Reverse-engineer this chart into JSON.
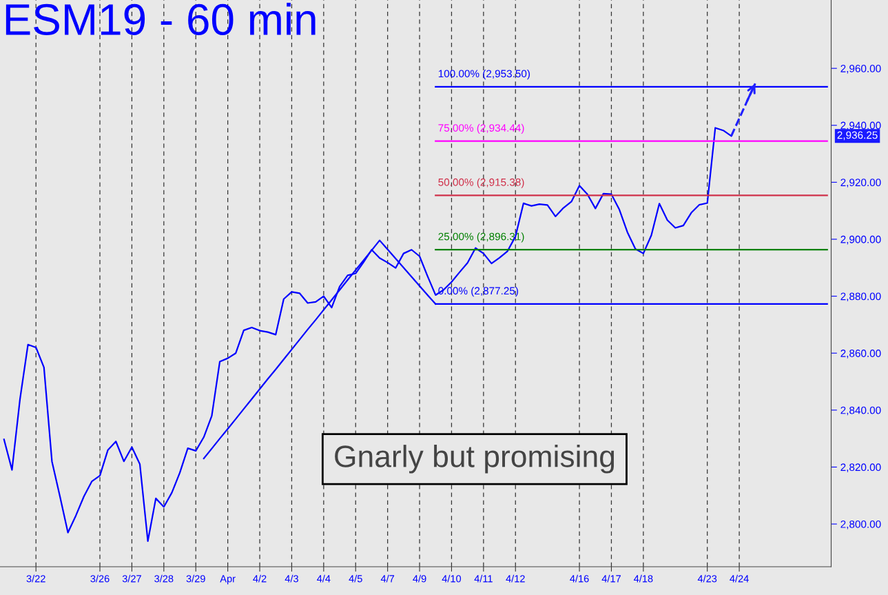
{
  "chart_data": {
    "type": "line",
    "title": "ESM19 - 60 min",
    "annotations": [
      "Gnarly but promising",
      "2,936.25"
    ],
    "categories": [
      null,
      null,
      null,
      null,
      "3/22",
      null,
      null,
      null,
      null,
      null,
      null,
      null,
      "3/26",
      null,
      null,
      null,
      "3/27",
      null,
      null,
      null,
      "3/28",
      null,
      null,
      null,
      "3/29",
      null,
      null,
      null,
      "Apr",
      null,
      null,
      null,
      "4/2",
      null,
      null,
      null,
      "4/3",
      null,
      null,
      null,
      "4/4",
      null,
      null,
      null,
      "4/5",
      null,
      null,
      null,
      "4/7",
      null,
      null,
      null,
      "4/9",
      null,
      null,
      null,
      "4/10",
      null,
      null,
      null,
      "4/11",
      null,
      null,
      null,
      "4/12",
      null,
      null,
      null,
      null,
      null,
      null,
      null,
      "4/16",
      null,
      null,
      null,
      "4/17",
      null,
      null,
      null,
      "4/18",
      null,
      null,
      null,
      null,
      null,
      null,
      null,
      "4/23",
      null,
      null,
      null,
      "4/24",
      null,
      null,
      null,
      null,
      null,
      null,
      null,
      null,
      null,
      null,
      null
    ],
    "series": [
      {
        "color": "#0000ff",
        "values": [
          2829.7,
          2819,
          2843.8,
          2863,
          2862,
          2855,
          2822,
          2809.7,
          2797,
          2803,
          2809.7,
          2815,
          2817,
          2826,
          2829,
          2822,
          2827,
          2821,
          2794,
          2809,
          2806,
          2811,
          2818,
          2826.6,
          2825.7,
          2830.5,
          2838,
          2857,
          2858.2,
          2860,
          2868,
          2869,
          2867.9,
          2867.4,
          2866.5,
          2879,
          2881.5,
          2881,
          2877.6,
          2878,
          2880,
          2876,
          2883.4,
          2887.3,
          2888,
          2892,
          2896.3,
          2893.4,
          2891.8,
          2889.9,
          2895,
          2896.3,
          2894,
          2887,
          2880.4,
          2882.2,
          2885,
          2888.4,
          2891.7,
          2896.9,
          2895,
          2891.5,
          2893.5,
          2895.8,
          2901,
          2912.6,
          2911.7,
          2912.3,
          2912,
          2908,
          2911,
          2913.2,
          2918.8,
          2915.8,
          2910.8,
          2916,
          2915.8,
          2910.4,
          2902.5,
          2896.6,
          2895,
          2901.4,
          2912.5,
          2906.7,
          2904,
          2904.8,
          2909.3,
          2912.1,
          2912.7,
          2939.1,
          2938.2,
          2936.25,
          null,
          null,
          null,
          null,
          null,
          null,
          null,
          null,
          null,
          null,
          null,
          null
        ]
      },
      {
        "color": "#0000ff",
        "values": [
          null,
          null,
          null,
          null,
          null,
          null,
          null,
          null,
          null,
          null,
          null,
          null,
          null,
          null,
          null,
          null,
          null,
          null,
          null,
          null,
          null,
          null,
          null,
          null,
          null,
          2823.0,
          2826.5,
          2830.0,
          2833.4,
          2836.9,
          2840.4,
          2843.9,
          2847.4,
          2850.9,
          2854.3,
          2857.8,
          2861.3,
          2864.8,
          2868.3,
          2871.7,
          2875.2,
          2878.7,
          2882.2,
          2885.7,
          2889.2,
          2892.6,
          2896.1,
          2899.6,
          2896.4,
          2893.2,
          2890.0,
          2886.8,
          2883.6,
          2880.4,
          2877.25,
          null,
          null,
          null,
          null,
          null,
          null,
          null,
          null,
          null,
          null,
          null,
          null,
          null,
          null,
          null,
          null,
          null,
          null,
          null,
          null,
          null,
          null,
          null,
          null,
          null,
          null,
          null,
          null,
          null,
          null,
          null,
          null,
          null,
          null,
          null,
          null,
          null,
          null,
          null,
          null,
          null,
          null,
          null,
          null,
          null,
          null,
          null,
          null,
          null
        ]
      },
      {
        "name": "100.00% (2,953.50)",
        "color": "#0000ff",
        "values": [
          null,
          null,
          null,
          null,
          null,
          null,
          null,
          null,
          null,
          null,
          null,
          null,
          null,
          null,
          null,
          null,
          null,
          null,
          null,
          null,
          null,
          null,
          null,
          null,
          null,
          null,
          null,
          null,
          null,
          null,
          null,
          null,
          null,
          null,
          null,
          null,
          null,
          null,
          null,
          null,
          null,
          null,
          null,
          null,
          null,
          null,
          null,
          null,
          null,
          null,
          null,
          null,
          null,
          null,
          2953.5,
          2953.5,
          2953.5,
          2953.5,
          2953.5,
          2953.5,
          2953.5,
          2953.5,
          2953.5,
          2953.5,
          2953.5,
          2953.5,
          2953.5,
          2953.5,
          2953.5,
          2953.5,
          2953.5,
          2953.5,
          2953.5,
          2953.5,
          2953.5,
          2953.5,
          2953.5,
          2953.5,
          2953.5,
          2953.5,
          2953.5,
          2953.5,
          2953.5,
          2953.5,
          2953.5,
          2953.5,
          2953.5,
          2953.5,
          2953.5,
          2953.5,
          2953.5,
          2953.5,
          2953.5,
          2953.5,
          2953.5,
          2953.5,
          2953.5,
          2953.5,
          2953.5,
          2953.5,
          2953.5,
          2953.5,
          2953.5,
          2953.5
        ]
      },
      {
        "name": "75.00% (2,934.44)",
        "color": "#ff00ff",
        "values": [
          null,
          null,
          null,
          null,
          null,
          null,
          null,
          null,
          null,
          null,
          null,
          null,
          null,
          null,
          null,
          null,
          null,
          null,
          null,
          null,
          null,
          null,
          null,
          null,
          null,
          null,
          null,
          null,
          null,
          null,
          null,
          null,
          null,
          null,
          null,
          null,
          null,
          null,
          null,
          null,
          null,
          null,
          null,
          null,
          null,
          null,
          null,
          null,
          null,
          null,
          null,
          null,
          null,
          null,
          2934.44,
          2934.44,
          2934.44,
          2934.44,
          2934.44,
          2934.44,
          2934.44,
          2934.44,
          2934.44,
          2934.44,
          2934.44,
          2934.44,
          2934.44,
          2934.44,
          2934.44,
          2934.44,
          2934.44,
          2934.44,
          2934.44,
          2934.44,
          2934.44,
          2934.44,
          2934.44,
          2934.44,
          2934.44,
          2934.44,
          2934.44,
          2934.44,
          2934.44,
          2934.44,
          2934.44,
          2934.44,
          2934.44,
          2934.44,
          2934.44,
          2934.44,
          2934.44,
          2934.44,
          2934.44,
          2934.44,
          2934.44,
          2934.44,
          2934.44,
          2934.44,
          2934.44,
          2934.44,
          2934.44,
          2934.44,
          2934.44,
          2934.44
        ]
      },
      {
        "name": "50.00% (2,915.38)",
        "color": "#d0304a",
        "values": [
          null,
          null,
          null,
          null,
          null,
          null,
          null,
          null,
          null,
          null,
          null,
          null,
          null,
          null,
          null,
          null,
          null,
          null,
          null,
          null,
          null,
          null,
          null,
          null,
          null,
          null,
          null,
          null,
          null,
          null,
          null,
          null,
          null,
          null,
          null,
          null,
          null,
          null,
          null,
          null,
          null,
          null,
          null,
          null,
          null,
          null,
          null,
          null,
          null,
          null,
          null,
          null,
          null,
          null,
          2915.38,
          2915.38,
          2915.38,
          2915.38,
          2915.38,
          2915.38,
          2915.38,
          2915.38,
          2915.38,
          2915.38,
          2915.38,
          2915.38,
          2915.38,
          2915.38,
          2915.38,
          2915.38,
          2915.38,
          2915.38,
          2915.38,
          2915.38,
          2915.38,
          2915.38,
          2915.38,
          2915.38,
          2915.38,
          2915.38,
          2915.38,
          2915.38,
          2915.38,
          2915.38,
          2915.38,
          2915.38,
          2915.38,
          2915.38,
          2915.38,
          2915.38,
          2915.38,
          2915.38,
          2915.38,
          2915.38,
          2915.38,
          2915.38,
          2915.38,
          2915.38,
          2915.38,
          2915.38,
          2915.38,
          2915.38,
          2915.38,
          2915.38
        ]
      },
      {
        "name": "25.00% (2,896.31)",
        "color": "#008000",
        "values": [
          null,
          null,
          null,
          null,
          null,
          null,
          null,
          null,
          null,
          null,
          null,
          null,
          null,
          null,
          null,
          null,
          null,
          null,
          null,
          null,
          null,
          null,
          null,
          null,
          null,
          null,
          null,
          null,
          null,
          null,
          null,
          null,
          null,
          null,
          null,
          null,
          null,
          null,
          null,
          null,
          null,
          null,
          null,
          null,
          null,
          null,
          null,
          null,
          null,
          null,
          null,
          null,
          null,
          null,
          2896.31,
          2896.31,
          2896.31,
          2896.31,
          2896.31,
          2896.31,
          2896.31,
          2896.31,
          2896.31,
          2896.31,
          2896.31,
          2896.31,
          2896.31,
          2896.31,
          2896.31,
          2896.31,
          2896.31,
          2896.31,
          2896.31,
          2896.31,
          2896.31,
          2896.31,
          2896.31,
          2896.31,
          2896.31,
          2896.31,
          2896.31,
          2896.31,
          2896.31,
          2896.31,
          2896.31,
          2896.31,
          2896.31,
          2896.31,
          2896.31,
          2896.31,
          2896.31,
          2896.31,
          2896.31,
          2896.31,
          2896.31,
          2896.31,
          2896.31,
          2896.31,
          2896.31,
          2896.31,
          2896.31,
          2896.31,
          2896.31,
          2896.31
        ]
      },
      {
        "name": "0.00% (2,877.25)",
        "color": "#0000ff",
        "values": [
          null,
          null,
          null,
          null,
          null,
          null,
          null,
          null,
          null,
          null,
          null,
          null,
          null,
          null,
          null,
          null,
          null,
          null,
          null,
          null,
          null,
          null,
          null,
          null,
          null,
          null,
          null,
          null,
          null,
          null,
          null,
          null,
          null,
          null,
          null,
          null,
          null,
          null,
          null,
          null,
          null,
          null,
          null,
          null,
          null,
          null,
          null,
          null,
          null,
          null,
          null,
          null,
          null,
          null,
          2877.25,
          2877.25,
          2877.25,
          2877.25,
          2877.25,
          2877.25,
          2877.25,
          2877.25,
          2877.25,
          2877.25,
          2877.25,
          2877.25,
          2877.25,
          2877.25,
          2877.25,
          2877.25,
          2877.25,
          2877.25,
          2877.25,
          2877.25,
          2877.25,
          2877.25,
          2877.25,
          2877.25,
          2877.25,
          2877.25,
          2877.25,
          2877.25,
          2877.25,
          2877.25,
          2877.25,
          2877.25,
          2877.25,
          2877.25,
          2877.25,
          2877.25,
          2877.25,
          2877.25,
          2877.25,
          2877.25,
          2877.25,
          2877.25,
          2877.25,
          2877.25,
          2877.25,
          2877.25,
          2877.25,
          2877.25,
          2877.25,
          2877.25
        ]
      },
      {
        "color": "#2020ff",
        "line_style": "dashed",
        "values": [
          null,
          null,
          null,
          null,
          null,
          null,
          null,
          null,
          null,
          null,
          null,
          null,
          null,
          null,
          null,
          null,
          null,
          null,
          null,
          null,
          null,
          null,
          null,
          null,
          null,
          null,
          null,
          null,
          null,
          null,
          null,
          null,
          null,
          null,
          null,
          null,
          null,
          null,
          null,
          null,
          null,
          null,
          null,
          null,
          null,
          null,
          null,
          null,
          null,
          null,
          null,
          null,
          null,
          null,
          null,
          null,
          null,
          null,
          null,
          null,
          null,
          null,
          null,
          null,
          null,
          null,
          null,
          null,
          null,
          null,
          null,
          null,
          null,
          null,
          null,
          null,
          null,
          null,
          null,
          null,
          null,
          null,
          null,
          null,
          null,
          null,
          null,
          null,
          null,
          null,
          null,
          2936.25,
          2942.4,
          2948.6,
          2954.7,
          null,
          null,
          null,
          null,
          null,
          null,
          null,
          null,
          null
        ]
      }
    ],
    "ylim": [
      2785,
      2984
    ],
    "yticks": [
      {
        "value": 2800,
        "label": "2,800.00"
      },
      {
        "value": 2820,
        "label": "2,820.00"
      },
      {
        "value": 2840,
        "label": "2,840.00"
      },
      {
        "value": 2860,
        "label": "2,860.00"
      },
      {
        "value": 2880,
        "label": "2,880.00"
      },
      {
        "value": 2900,
        "label": "2,900.00"
      },
      {
        "value": 2920,
        "label": "2,920.00"
      },
      {
        "value": 2940,
        "label": "2,940.00"
      },
      {
        "value": 2960,
        "label": "2,960.00"
      }
    ],
    "grid": "x",
    "legend": false,
    "line_style": "solid"
  }
}
